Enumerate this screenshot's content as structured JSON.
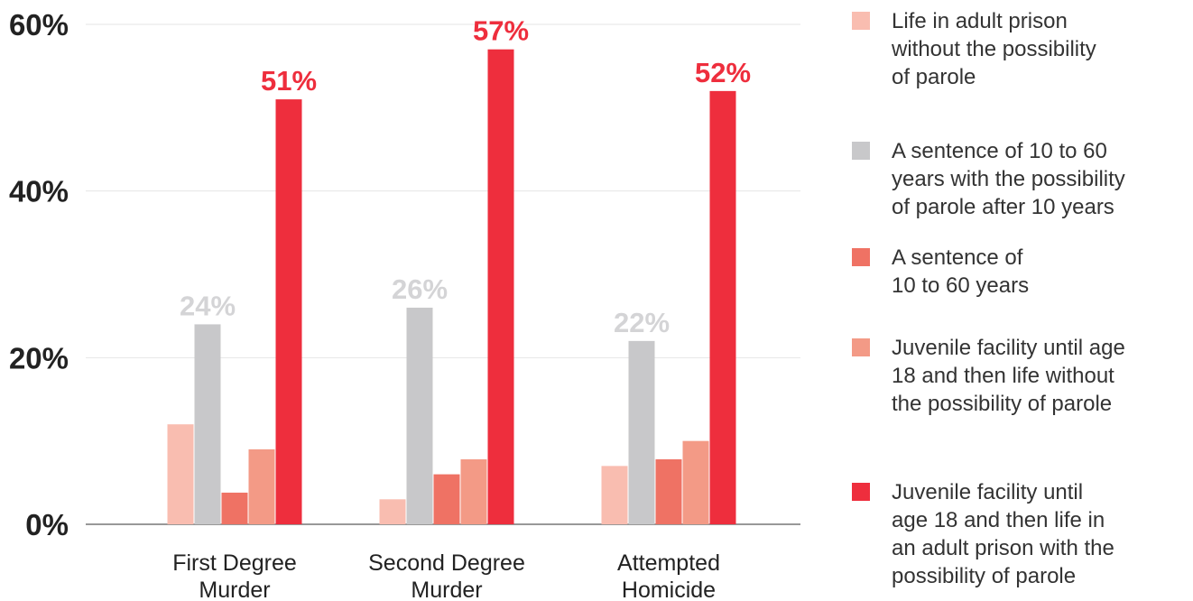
{
  "chart_data": {
    "type": "bar",
    "categories": [
      "First Degree\nMurder",
      "Second Degree\nMurder",
      "Attempted\nHomicide"
    ],
    "ylim": [
      0,
      60
    ],
    "yticks": [
      "0%",
      "20%",
      "40%",
      "60%"
    ],
    "grid": true,
    "legend_position": "right",
    "series": [
      {
        "name": "Life in adult prison\nwithout the possibility\nof parole",
        "color": "#f9bdb0",
        "values": [
          12,
          3,
          7
        ]
      },
      {
        "name": "A sentence of 10 to 60\nyears with the possibility\nof parole after 10 years",
        "color": "#c8c8ca",
        "values": [
          24,
          26,
          22
        ],
        "labels": [
          "24%",
          "26%",
          "22%"
        ],
        "label_color": "#d4d4d6"
      },
      {
        "name": "A sentence of\n10 to 60 years",
        "color": "#ef7264",
        "values": [
          3.8,
          6,
          7.8
        ]
      },
      {
        "name": "Juvenile facility until age\n18 and then life without\nthe possibility of parole",
        "color": "#f39a86",
        "values": [
          9,
          7.8,
          10
        ]
      },
      {
        "name": "Juvenile facility until\nage 18 and then life in\nan adult prison with the\npossibility of parole",
        "color": "#ee2e3d",
        "values": [
          51,
          57,
          52
        ],
        "labels": [
          "51%",
          "57%",
          "52%"
        ],
        "label_color": "#ee2e3d"
      }
    ]
  }
}
